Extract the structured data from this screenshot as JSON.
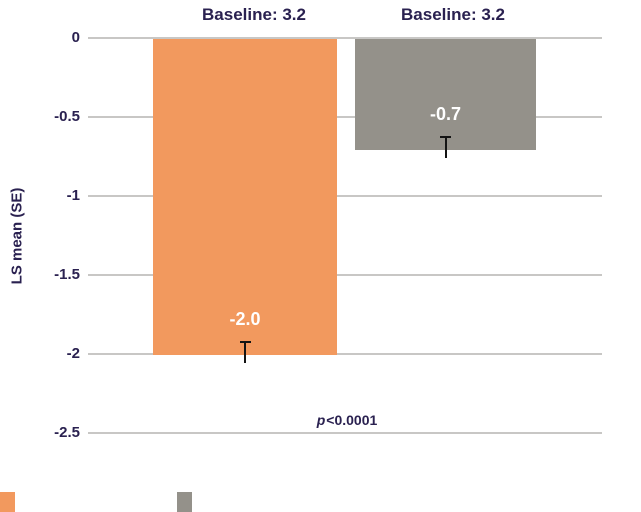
{
  "chart_data": {
    "type": "bar",
    "orientation": "vertical",
    "ylabel": "LS mean (SE)",
    "ylim": [
      0,
      -2.5
    ],
    "yticks": [
      0,
      -0.5,
      -1,
      -1.5,
      -2,
      -2.5
    ],
    "ytick_labels": [
      "0",
      "-0.5",
      "-1",
      "-1.5",
      "-2",
      "-2.5"
    ],
    "grid": "horizontal",
    "error_bars": true,
    "series": [
      {
        "value": -2.0,
        "value_label": "-2.0",
        "baseline_label": "Baseline: 3.2",
        "color": "#f2995e"
      },
      {
        "value": -0.7,
        "value_label": "-0.7",
        "baseline_label": "Baseline: 3.2",
        "color": "#94918a"
      }
    ],
    "annotation": {
      "prefix_italic": "p",
      "text": "<0.0001",
      "full": "p<0.0001"
    },
    "legend_position": "bottom-left",
    "colors": {
      "text": "#2a2150",
      "gridline": "#c8c7c5",
      "value_label_text": "#ffffff",
      "error_bar": "#141414",
      "background": "#ffffff"
    }
  }
}
